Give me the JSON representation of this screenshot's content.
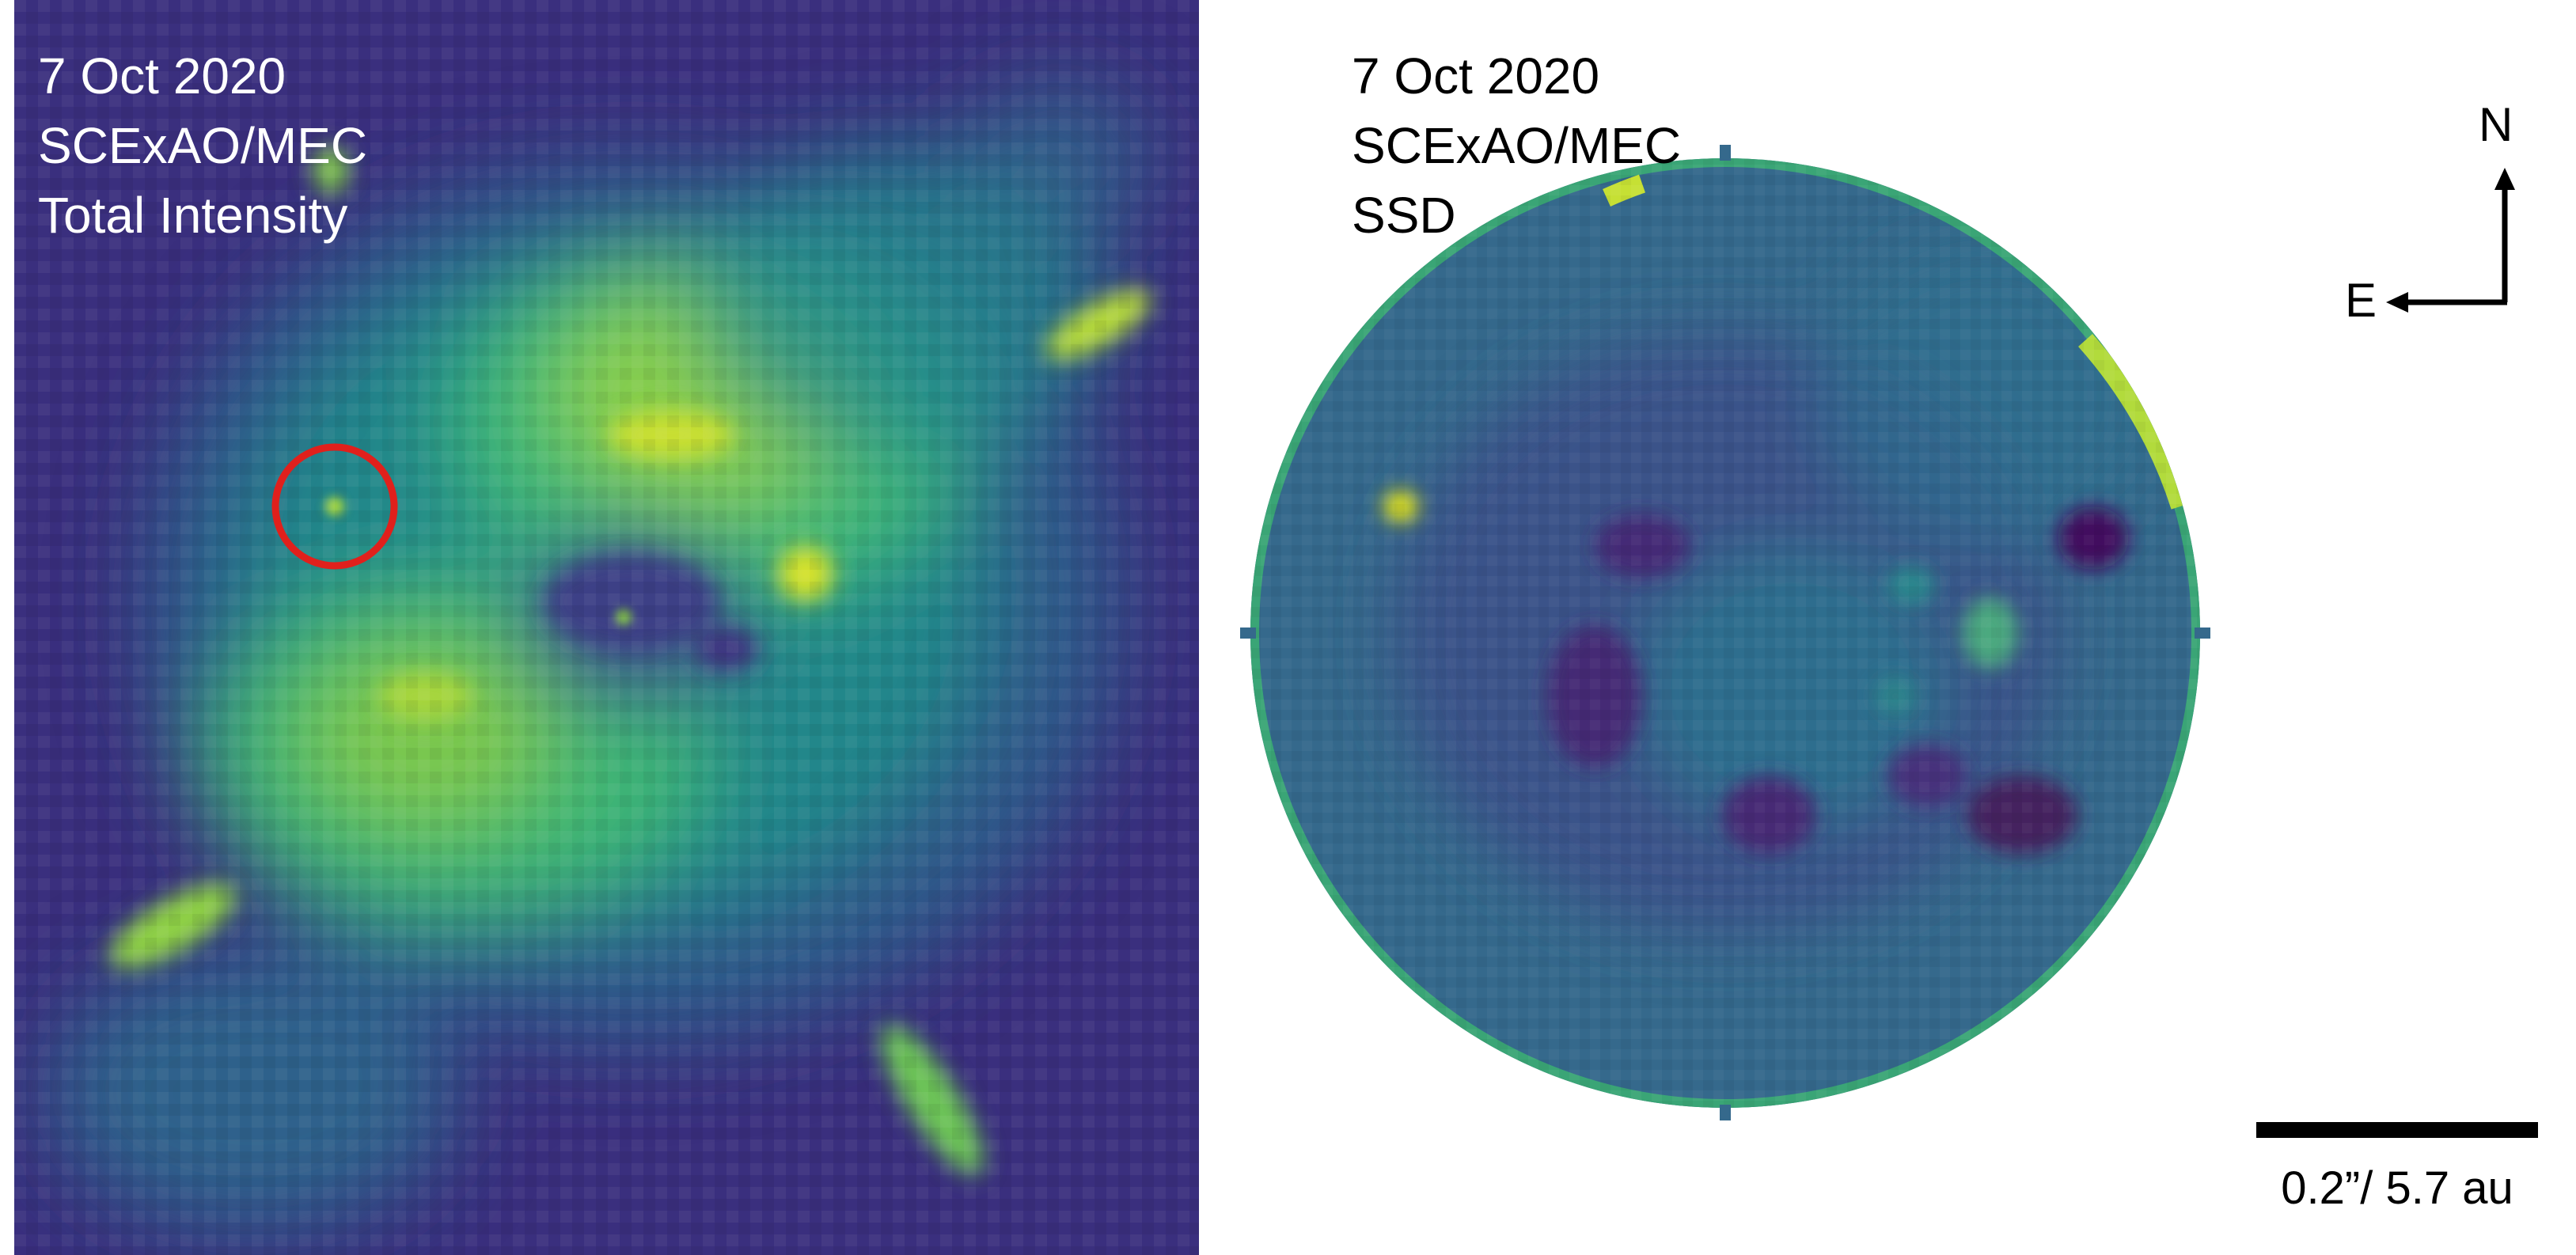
{
  "left_panel": {
    "caption_lines": [
      "7 Oct 2020",
      "SCExAO/MEC",
      "Total Intensity"
    ],
    "colormap": "viridis",
    "highlight_marker": {
      "shape": "circle",
      "color": "#e0201c"
    }
  },
  "right_panel": {
    "caption_lines": [
      "7 Oct 2020",
      "SCExAO/MEC",
      "SSD"
    ],
    "colormap": "viridis",
    "compass": {
      "north_label": "N",
      "east_label": "E"
    },
    "scale_bar": {
      "label": "0.2”/ 5.7 au"
    }
  },
  "colors": {
    "viridis_dark": "#440154",
    "viridis_mid": "#21918c",
    "viridis_light": "#5ec962",
    "viridis_bright": "#fde725",
    "marker": "#e0201c",
    "annotation": "#000000"
  }
}
